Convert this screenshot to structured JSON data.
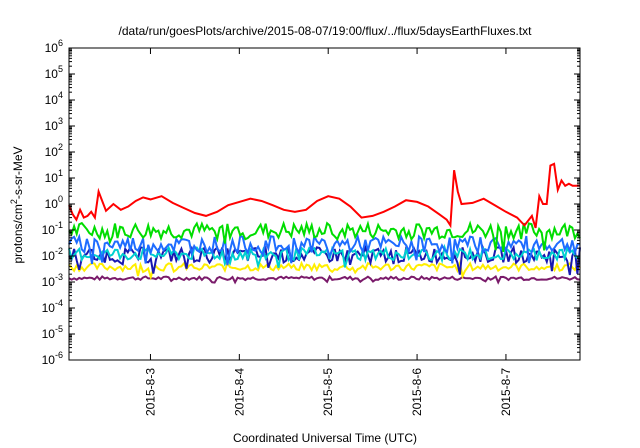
{
  "chart_data": {
    "type": "line",
    "title": "/data/run/goesPlots/archive/2015-08-07/19:00/flux/../flux/5daysEarthFluxes.txt",
    "xlabel": "Coordinated Universal Time (UTC)",
    "ylabel": {
      "prefix": "protons/cm",
      "superscript": "2",
      "suffix": "-s-sr-MeV"
    },
    "y_scale": "log",
    "ylim": [
      1e-06,
      1000000.0
    ],
    "y_ticks": [
      {
        "value": 1e-06,
        "base": "10",
        "exp": "-6"
      },
      {
        "value": 1e-05,
        "base": "10",
        "exp": "-5"
      },
      {
        "value": 0.0001,
        "base": "10",
        "exp": "-4"
      },
      {
        "value": 0.001,
        "base": "10",
        "exp": "-3"
      },
      {
        "value": 0.01,
        "base": "10",
        "exp": "-2"
      },
      {
        "value": 0.1,
        "base": "10",
        "exp": "-1"
      },
      {
        "value": 1,
        "base": "10",
        "exp": "0"
      },
      {
        "value": 10,
        "base": "10",
        "exp": "1"
      },
      {
        "value": 100,
        "base": "10",
        "exp": "2"
      },
      {
        "value": 1000,
        "base": "10",
        "exp": "3"
      },
      {
        "value": 10000,
        "base": "10",
        "exp": "4"
      },
      {
        "value": 100000,
        "base": "10",
        "exp": "5"
      },
      {
        "value": 1000000,
        "base": "10",
        "exp": "6"
      }
    ],
    "xlim": [
      "2015-08-02T02:00",
      "2015-08-07T20:00"
    ],
    "x_ticks": [
      "2015-8-3",
      "2015-8-4",
      "2015-8-5",
      "2015-8-6",
      "2015-8-7"
    ],
    "grid": false,
    "series": [
      {
        "color": "#ff0000",
        "x": [
          "2015-08-02T02:00",
          "2015-08-02T03:00",
          "2015-08-02T04:00",
          "2015-08-02T05:00",
          "2015-08-02T06:00",
          "2015-08-02T07:00",
          "2015-08-02T08:00",
          "2015-08-02T09:00",
          "2015-08-02T10:00",
          "2015-08-02T12:00",
          "2015-08-02T14:00",
          "2015-08-02T16:00",
          "2015-08-02T18:00",
          "2015-08-02T20:00",
          "2015-08-02T22:00",
          "2015-08-03T00:00",
          "2015-08-03T03:00",
          "2015-08-03T06:00",
          "2015-08-03T09:00",
          "2015-08-03T12:00",
          "2015-08-03T15:00",
          "2015-08-03T18:00",
          "2015-08-03T21:00",
          "2015-08-04T00:00",
          "2015-08-04T03:00",
          "2015-08-04T06:00",
          "2015-08-04T09:00",
          "2015-08-04T12:00",
          "2015-08-04T15:00",
          "2015-08-04T18:00",
          "2015-08-04T21:00",
          "2015-08-05T00:00",
          "2015-08-05T03:00",
          "2015-08-05T06:00",
          "2015-08-05T09:00",
          "2015-08-05T12:00",
          "2015-08-05T15:00",
          "2015-08-05T18:00",
          "2015-08-05T21:00",
          "2015-08-06T00:00",
          "2015-08-06T03:00",
          "2015-08-06T06:00",
          "2015-08-06T08:00",
          "2015-08-06T09:00",
          "2015-08-06T10:00",
          "2015-08-06T11:00",
          "2015-08-06T12:00",
          "2015-08-06T15:00",
          "2015-08-06T18:00",
          "2015-08-06T21:00",
          "2015-08-07T00:00",
          "2015-08-07T03:00",
          "2015-08-07T05:00",
          "2015-08-07T07:00",
          "2015-08-07T08:00",
          "2015-08-07T09:00",
          "2015-08-07T10:00",
          "2015-08-07T11:00",
          "2015-08-07T12:00",
          "2015-08-07T13:00",
          "2015-08-07T14:00",
          "2015-08-07T15:00",
          "2015-08-07T16:00",
          "2015-08-07T17:00",
          "2015-08-07T18:00",
          "2015-08-07T19:00",
          "2015-08-07T20:00"
        ],
        "y": [
          0.9,
          0.4,
          0.25,
          0.6,
          0.3,
          0.35,
          0.5,
          0.3,
          3,
          0.55,
          1.0,
          0.6,
          0.8,
          1.3,
          1.8,
          1.5,
          2.0,
          1.1,
          0.7,
          0.45,
          0.35,
          0.5,
          0.9,
          1.2,
          1.6,
          1.3,
          0.9,
          0.6,
          0.5,
          0.6,
          1.3,
          2.0,
          1.6,
          0.8,
          0.3,
          0.35,
          0.5,
          0.8,
          1.4,
          1.2,
          0.8,
          0.4,
          0.25,
          0.15,
          20,
          3,
          1.0,
          1.1,
          1.6,
          0.9,
          0.5,
          0.3,
          0.15,
          0.35,
          0.12,
          2.0,
          1.0,
          1.0,
          30,
          35,
          3.5,
          8,
          5,
          6,
          5,
          5,
          5
        ]
      },
      {
        "color": "#00dd00",
        "level": 0.09,
        "spread": 0.32
      },
      {
        "color": "#1e6cff",
        "level": 0.028,
        "spread": 0.32
      },
      {
        "color": "#00d0d0",
        "level": 0.012,
        "spread": 0.25
      },
      {
        "color": "#1818b0",
        "level": 0.011,
        "spread": 0.3
      },
      {
        "color": "#ffee00",
        "level": 0.0038,
        "spread": 0.15
      },
      {
        "color": "#7a1a6a",
        "level": 0.0014,
        "spread": 0.07
      }
    ]
  }
}
